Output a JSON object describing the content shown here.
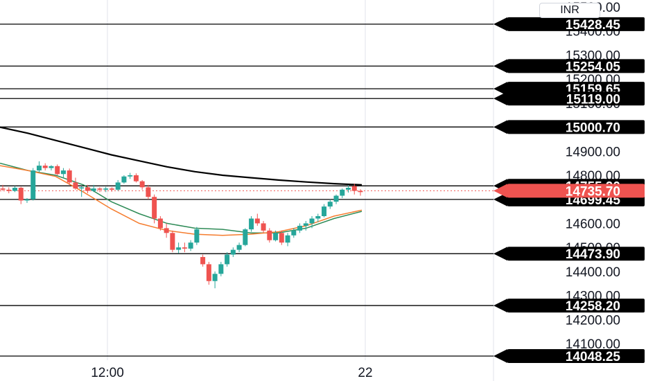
{
  "chart_data": {
    "type": "candlestick",
    "y_ticks": [
      "14100.00",
      "14200.00",
      "14300.00",
      "14400.00",
      "14500.00",
      "14600.00",
      "14700.00",
      "14800.00",
      "14900.00",
      "15000.00",
      "15100.00",
      "15200.00",
      "15300.00",
      "15400.00",
      "15500.00"
    ],
    "x_ticks": [
      "12:00",
      "22"
    ],
    "currency": "INR",
    "levels": [
      15428.45,
      15254.05,
      15159.65,
      15119.0,
      15000.7,
      14755.9,
      14699.45,
      14473.9,
      14258.2,
      14048.25
    ],
    "level_labels": [
      "15428.45",
      "15254.05",
      "15159.65",
      "15119.00",
      "15000.70",
      "14755.90",
      "14699.45",
      "14473.90",
      "14258.20",
      "14048.25"
    ],
    "last_price": 14735.7,
    "last_price_label": "14735.70",
    "candles": [
      [
        14745,
        14760,
        14735,
        14740
      ],
      [
        14740,
        14750,
        14725,
        14735
      ],
      [
        14735,
        14755,
        14730,
        14748
      ],
      [
        14748,
        14752,
        14680,
        14695
      ],
      [
        14695,
        14705,
        14685,
        14700
      ],
      [
        14700,
        14830,
        14695,
        14820
      ],
      [
        14820,
        14858,
        14812,
        14840
      ],
      [
        14840,
        14850,
        14820,
        14830
      ],
      [
        14830,
        14842,
        14820,
        14838
      ],
      [
        14838,
        14845,
        14800,
        14805
      ],
      [
        14805,
        14830,
        14790,
        14820
      ],
      [
        14820,
        14828,
        14760,
        14770
      ],
      [
        14770,
        14790,
        14740,
        14745
      ],
      [
        14745,
        14755,
        14710,
        14750
      ],
      [
        14750,
        14760,
        14725,
        14735
      ],
      [
        14735,
        14760,
        14730,
        14745
      ],
      [
        14745,
        14750,
        14730,
        14740
      ],
      [
        14740,
        14752,
        14730,
        14745
      ],
      [
        14745,
        14750,
        14732,
        14740
      ],
      [
        14740,
        14780,
        14735,
        14770
      ],
      [
        14770,
        14800,
        14765,
        14795
      ],
      [
        14795,
        14810,
        14785,
        14800
      ],
      [
        14800,
        14808,
        14770,
        14775
      ],
      [
        14775,
        14780,
        14740,
        14750
      ],
      [
        14750,
        14760,
        14700,
        14710
      ],
      [
        14710,
        14720,
        14600,
        14620
      ],
      [
        14620,
        14630,
        14570,
        14580
      ],
      [
        14580,
        14600,
        14540,
        14560
      ],
      [
        14560,
        14570,
        14480,
        14490
      ],
      [
        14490,
        14520,
        14475,
        14500
      ],
      [
        14500,
        14520,
        14480,
        14495
      ],
      [
        14495,
        14530,
        14485,
        14520
      ],
      [
        14520,
        14585,
        14510,
        14575
      ],
      [
        14460,
        14470,
        14420,
        14430
      ],
      [
        14430,
        14440,
        14345,
        14360
      ],
      [
        14360,
        14400,
        14330,
        14390
      ],
      [
        14390,
        14440,
        14380,
        14430
      ],
      [
        14430,
        14480,
        14420,
        14470
      ],
      [
        14470,
        14500,
        14460,
        14490
      ],
      [
        14490,
        14520,
        14480,
        14510
      ],
      [
        14510,
        14580,
        14505,
        14575
      ],
      [
        14575,
        14630,
        14565,
        14620
      ],
      [
        14620,
        14640,
        14590,
        14600
      ],
      [
        14600,
        14610,
        14560,
        14570
      ],
      [
        14570,
        14580,
        14520,
        14530
      ],
      [
        14530,
        14570,
        14525,
        14560
      ],
      [
        14560,
        14570,
        14510,
        14520
      ],
      [
        14520,
        14560,
        14505,
        14550
      ],
      [
        14550,
        14580,
        14540,
        14570
      ],
      [
        14570,
        14600,
        14560,
        14590
      ],
      [
        14590,
        14610,
        14570,
        14600
      ],
      [
        14600,
        14630,
        14580,
        14620
      ],
      [
        14620,
        14640,
        14605,
        14630
      ],
      [
        14630,
        14680,
        14625,
        14670
      ],
      [
        14670,
        14700,
        14660,
        14690
      ],
      [
        14690,
        14720,
        14680,
        14715
      ],
      [
        14715,
        14745,
        14705,
        14740
      ],
      [
        14740,
        14758,
        14728,
        14748
      ],
      [
        14755,
        14765,
        14720,
        14735
      ],
      [
        14735,
        14742,
        14715,
        14730
      ]
    ],
    "series": [
      {
        "color": "#000000",
        "values": [
          15000,
          14975,
          14945,
          14915,
          14885,
          14860,
          14835,
          14815,
          14800,
          14790,
          14780,
          14772,
          14765,
          14760
        ]
      },
      {
        "color": "#2e8b57",
        "values": [
          14850,
          14820,
          14800,
          14760,
          14690,
          14640,
          14600,
          14580,
          14575,
          14560,
          14560,
          14580,
          14620,
          14650
        ]
      },
      {
        "color": "#f57c2e",
        "values": [
          14840,
          14820,
          14795,
          14730,
          14660,
          14600,
          14570,
          14555,
          14550,
          14555,
          14565,
          14590,
          14630,
          14655
        ]
      }
    ]
  },
  "colors": {
    "up": "#26a69a",
    "down": "#ef5350",
    "level": "#000000",
    "tag": "#000000",
    "last": "#ef5350",
    "grid": "#e0e3eb"
  }
}
